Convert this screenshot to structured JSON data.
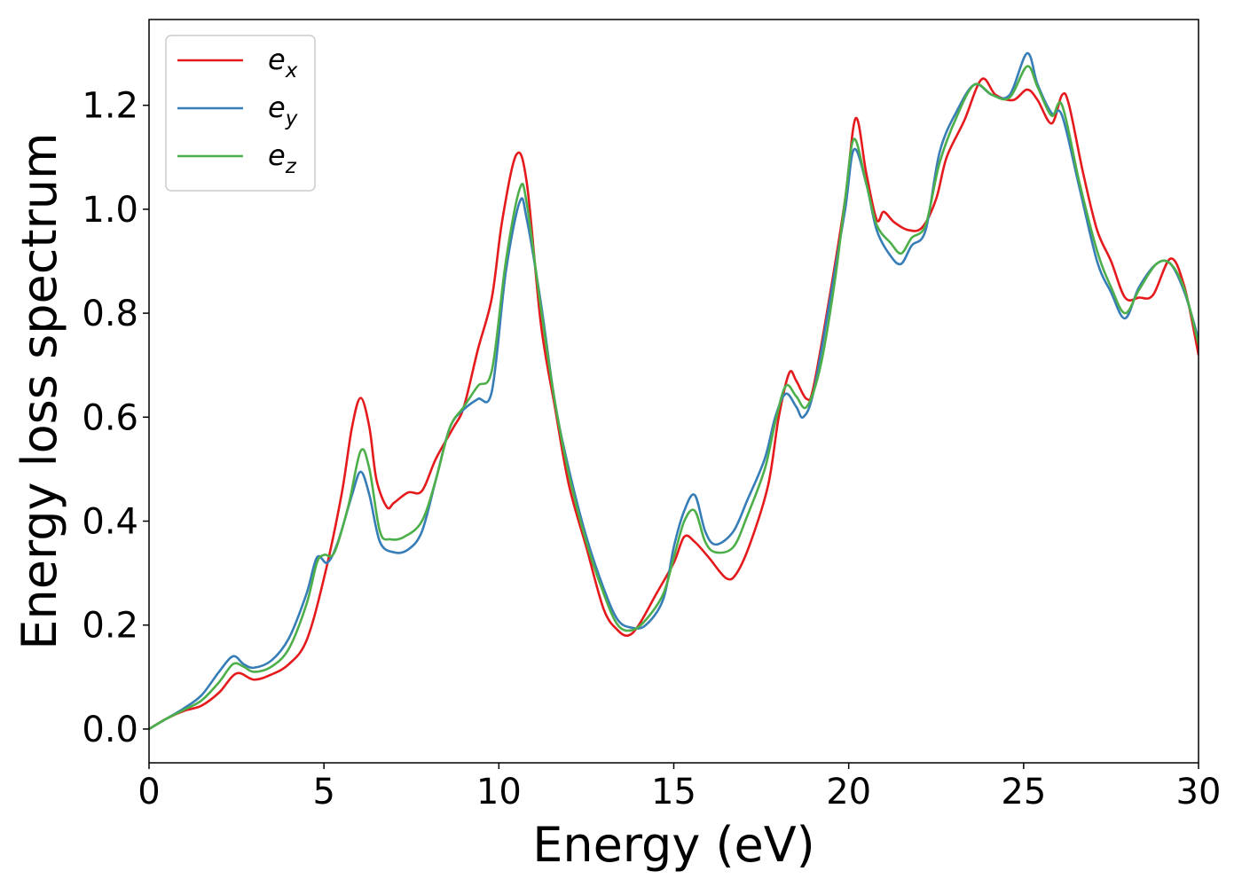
{
  "chart_data": {
    "type": "line",
    "xlabel": "Energy (eV)",
    "ylabel": "Energy loss spectrum",
    "xlim": [
      0,
      30
    ],
    "ylim": [
      -0.065,
      1.365
    ],
    "xticks": [
      0,
      5,
      10,
      15,
      20,
      25,
      30
    ],
    "xtick_labels": [
      "0",
      "5",
      "10",
      "15",
      "20",
      "25",
      "30"
    ],
    "yticks": [
      0.0,
      0.2,
      0.4,
      0.6,
      0.8,
      1.0,
      1.2
    ],
    "ytick_labels": [
      "0.0",
      "0.2",
      "0.4",
      "0.6",
      "0.8",
      "1.0",
      "1.2"
    ],
    "grid": false,
    "legend_position": "top-left",
    "series": [
      {
        "name": "e_x",
        "legend_base": "e",
        "legend_sub": "x",
        "color": "#e41a1c",
        "points": [
          [
            0,
            0
          ],
          [
            0.5,
            0.02
          ],
          [
            1,
            0.035
          ],
          [
            1.5,
            0.045
          ],
          [
            2,
            0.07
          ],
          [
            2.5,
            0.107
          ],
          [
            3,
            0.095
          ],
          [
            3.5,
            0.105
          ],
          [
            4,
            0.125
          ],
          [
            4.5,
            0.17
          ],
          [
            5,
            0.29
          ],
          [
            5.5,
            0.45
          ],
          [
            5.8,
            0.58
          ],
          [
            6.05,
            0.637
          ],
          [
            6.3,
            0.58
          ],
          [
            6.5,
            0.48
          ],
          [
            6.8,
            0.427
          ],
          [
            7,
            0.435
          ],
          [
            7.4,
            0.455
          ],
          [
            7.8,
            0.458
          ],
          [
            8.2,
            0.52
          ],
          [
            8.7,
            0.58
          ],
          [
            9,
            0.62
          ],
          [
            9.4,
            0.73
          ],
          [
            9.8,
            0.83
          ],
          [
            10.1,
            0.98
          ],
          [
            10.5,
            1.105
          ],
          [
            10.8,
            1.05
          ],
          [
            11.2,
            0.78
          ],
          [
            11.6,
            0.62
          ],
          [
            12,
            0.47
          ],
          [
            12.5,
            0.35
          ],
          [
            13,
            0.23
          ],
          [
            13.4,
            0.19
          ],
          [
            13.7,
            0.18
          ],
          [
            14,
            0.2
          ],
          [
            14.5,
            0.26
          ],
          [
            15,
            0.32
          ],
          [
            15.3,
            0.37
          ],
          [
            15.6,
            0.36
          ],
          [
            16,
            0.33
          ],
          [
            16.5,
            0.29
          ],
          [
            16.8,
            0.3
          ],
          [
            17.2,
            0.36
          ],
          [
            17.7,
            0.47
          ],
          [
            18,
            0.6
          ],
          [
            18.3,
            0.685
          ],
          [
            18.5,
            0.67
          ],
          [
            18.8,
            0.635
          ],
          [
            19,
            0.66
          ],
          [
            19.5,
            0.85
          ],
          [
            19.9,
            1.02
          ],
          [
            20.2,
            1.175
          ],
          [
            20.5,
            1.07
          ],
          [
            20.8,
            0.98
          ],
          [
            21,
            0.995
          ],
          [
            21.3,
            0.975
          ],
          [
            21.7,
            0.96
          ],
          [
            22.1,
            0.965
          ],
          [
            22.5,
            1.02
          ],
          [
            22.8,
            1.1
          ],
          [
            23.3,
            1.17
          ],
          [
            23.8,
            1.25
          ],
          [
            24.2,
            1.22
          ],
          [
            24.7,
            1.21
          ],
          [
            25.1,
            1.23
          ],
          [
            25.4,
            1.21
          ],
          [
            25.8,
            1.165
          ],
          [
            26.1,
            1.22
          ],
          [
            26.3,
            1.2
          ],
          [
            26.7,
            1.07
          ],
          [
            27.1,
            0.96
          ],
          [
            27.5,
            0.9
          ],
          [
            27.9,
            0.83
          ],
          [
            28.3,
            0.83
          ],
          [
            28.7,
            0.835
          ],
          [
            29.2,
            0.905
          ],
          [
            29.6,
            0.85
          ],
          [
            30,
            0.72
          ]
        ]
      },
      {
        "name": "e_y",
        "legend_base": "e",
        "legend_sub": "y",
        "color": "#377eb8",
        "points": [
          [
            0,
            0
          ],
          [
            0.5,
            0.02
          ],
          [
            1,
            0.04
          ],
          [
            1.5,
            0.065
          ],
          [
            2,
            0.11
          ],
          [
            2.4,
            0.14
          ],
          [
            2.7,
            0.125
          ],
          [
            3,
            0.118
          ],
          [
            3.5,
            0.132
          ],
          [
            4,
            0.175
          ],
          [
            4.5,
            0.26
          ],
          [
            4.8,
            0.33
          ],
          [
            5.1,
            0.32
          ],
          [
            5.4,
            0.36
          ],
          [
            5.8,
            0.45
          ],
          [
            6.05,
            0.495
          ],
          [
            6.3,
            0.45
          ],
          [
            6.6,
            0.36
          ],
          [
            7,
            0.34
          ],
          [
            7.4,
            0.345
          ],
          [
            7.8,
            0.38
          ],
          [
            8.2,
            0.48
          ],
          [
            8.6,
            0.58
          ],
          [
            9,
            0.615
          ],
          [
            9.4,
            0.635
          ],
          [
            9.8,
            0.65
          ],
          [
            10.2,
            0.88
          ],
          [
            10.6,
            1.015
          ],
          [
            10.8,
            0.98
          ],
          [
            11.2,
            0.82
          ],
          [
            11.6,
            0.63
          ],
          [
            12,
            0.5
          ],
          [
            12.5,
            0.37
          ],
          [
            13,
            0.27
          ],
          [
            13.4,
            0.21
          ],
          [
            13.8,
            0.195
          ],
          [
            14.2,
            0.2
          ],
          [
            14.7,
            0.25
          ],
          [
            15,
            0.35
          ],
          [
            15.3,
            0.42
          ],
          [
            15.6,
            0.45
          ],
          [
            15.9,
            0.38
          ],
          [
            16.2,
            0.355
          ],
          [
            16.7,
            0.38
          ],
          [
            17.1,
            0.44
          ],
          [
            17.6,
            0.52
          ],
          [
            17.9,
            0.6
          ],
          [
            18.2,
            0.645
          ],
          [
            18.5,
            0.62
          ],
          [
            18.7,
            0.6
          ],
          [
            19,
            0.65
          ],
          [
            19.5,
            0.84
          ],
          [
            19.9,
            1.0
          ],
          [
            20.15,
            1.115
          ],
          [
            20.5,
            1.05
          ],
          [
            20.8,
            0.96
          ],
          [
            21.2,
            0.91
          ],
          [
            21.5,
            0.895
          ],
          [
            21.8,
            0.93
          ],
          [
            22.2,
            0.96
          ],
          [
            22.6,
            1.11
          ],
          [
            23.1,
            1.19
          ],
          [
            23.6,
            1.24
          ],
          [
            24.1,
            1.22
          ],
          [
            24.6,
            1.22
          ],
          [
            25.1,
            1.3
          ],
          [
            25.4,
            1.24
          ],
          [
            25.8,
            1.185
          ],
          [
            26.1,
            1.18
          ],
          [
            26.6,
            1.04
          ],
          [
            27.1,
            0.9
          ],
          [
            27.5,
            0.84
          ],
          [
            27.9,
            0.79
          ],
          [
            28.3,
            0.85
          ],
          [
            28.8,
            0.895
          ],
          [
            29.2,
            0.895
          ],
          [
            29.6,
            0.84
          ],
          [
            30,
            0.75
          ]
        ]
      },
      {
        "name": "e_z",
        "legend_base": "e",
        "legend_sub": "z",
        "color": "#4daf4a",
        "points": [
          [
            0,
            0
          ],
          [
            0.5,
            0.02
          ],
          [
            1,
            0.037
          ],
          [
            1.5,
            0.055
          ],
          [
            2,
            0.09
          ],
          [
            2.4,
            0.125
          ],
          [
            2.7,
            0.12
          ],
          [
            3,
            0.11
          ],
          [
            3.5,
            0.12
          ],
          [
            4,
            0.155
          ],
          [
            4.5,
            0.24
          ],
          [
            4.8,
            0.32
          ],
          [
            5,
            0.335
          ],
          [
            5.3,
            0.34
          ],
          [
            5.7,
            0.43
          ],
          [
            6.05,
            0.535
          ],
          [
            6.3,
            0.5
          ],
          [
            6.6,
            0.38
          ],
          [
            6.9,
            0.365
          ],
          [
            7.3,
            0.37
          ],
          [
            7.8,
            0.4
          ],
          [
            8.2,
            0.48
          ],
          [
            8.6,
            0.58
          ],
          [
            9,
            0.62
          ],
          [
            9.4,
            0.66
          ],
          [
            9.8,
            0.69
          ],
          [
            10.2,
            0.9
          ],
          [
            10.6,
            1.04
          ],
          [
            10.8,
            1.01
          ],
          [
            11.2,
            0.81
          ],
          [
            11.6,
            0.63
          ],
          [
            12,
            0.49
          ],
          [
            12.5,
            0.36
          ],
          [
            13,
            0.26
          ],
          [
            13.4,
            0.2
          ],
          [
            13.8,
            0.19
          ],
          [
            14.2,
            0.21
          ],
          [
            14.7,
            0.26
          ],
          [
            15,
            0.33
          ],
          [
            15.3,
            0.4
          ],
          [
            15.6,
            0.42
          ],
          [
            15.9,
            0.36
          ],
          [
            16.2,
            0.34
          ],
          [
            16.7,
            0.35
          ],
          [
            17.1,
            0.41
          ],
          [
            17.6,
            0.5
          ],
          [
            17.9,
            0.59
          ],
          [
            18.2,
            0.66
          ],
          [
            18.5,
            0.64
          ],
          [
            18.8,
            0.62
          ],
          [
            19.2,
            0.7
          ],
          [
            19.6,
            0.86
          ],
          [
            19.9,
            1.02
          ],
          [
            20.15,
            1.135
          ],
          [
            20.5,
            1.05
          ],
          [
            20.8,
            0.97
          ],
          [
            21.2,
            0.935
          ],
          [
            21.5,
            0.915
          ],
          [
            21.8,
            0.945
          ],
          [
            22.2,
            0.97
          ],
          [
            22.6,
            1.09
          ],
          [
            23.1,
            1.18
          ],
          [
            23.6,
            1.24
          ],
          [
            24.1,
            1.22
          ],
          [
            24.6,
            1.215
          ],
          [
            25.1,
            1.275
          ],
          [
            25.4,
            1.235
          ],
          [
            25.8,
            1.18
          ],
          [
            26.1,
            1.2
          ],
          [
            26.6,
            1.05
          ],
          [
            27.1,
            0.92
          ],
          [
            27.5,
            0.85
          ],
          [
            27.9,
            0.8
          ],
          [
            28.3,
            0.845
          ],
          [
            28.8,
            0.895
          ],
          [
            29.2,
            0.895
          ],
          [
            29.6,
            0.845
          ],
          [
            30,
            0.74
          ]
        ]
      }
    ]
  }
}
